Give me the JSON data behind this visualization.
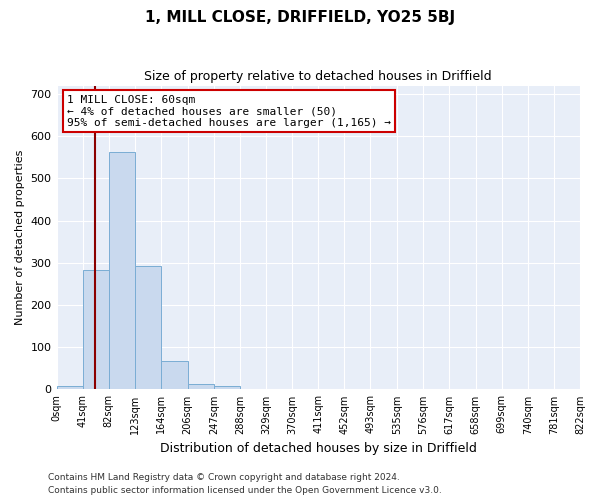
{
  "title": "1, MILL CLOSE, DRIFFIELD, YO25 5BJ",
  "subtitle": "Size of property relative to detached houses in Driffield",
  "xlabel": "Distribution of detached houses by size in Driffield",
  "ylabel": "Number of detached properties",
  "bar_edges": [
    0,
    41,
    82,
    123,
    164,
    206,
    247,
    288,
    329,
    370,
    411,
    452,
    493,
    535,
    576,
    617,
    658,
    699,
    740,
    781,
    822
  ],
  "bar_heights": [
    7,
    284,
    563,
    293,
    68,
    14,
    9,
    0,
    0,
    0,
    0,
    0,
    0,
    0,
    0,
    0,
    0,
    0,
    0,
    0
  ],
  "bar_color": "#c9d9ee",
  "bar_edge_color": "#7aadd4",
  "property_line_x": 60,
  "property_line_color": "#8b0000",
  "annotation_line1": "1 MILL CLOSE: 60sqm",
  "annotation_line2": "← 4% of detached houses are smaller (50)",
  "annotation_line3": "95% of semi-detached houses are larger (1,165) →",
  "annotation_box_color": "#ffffff",
  "annotation_box_edgecolor": "#cc0000",
  "ylim": [
    0,
    720
  ],
  "yticks": [
    0,
    100,
    200,
    300,
    400,
    500,
    600,
    700
  ],
  "footer_line1": "Contains HM Land Registry data © Crown copyright and database right 2024.",
  "footer_line2": "Contains public sector information licensed under the Open Government Licence v3.0.",
  "plot_bg_color": "#e8eef8",
  "tick_labels": [
    "0sqm",
    "41sqm",
    "82sqm",
    "123sqm",
    "164sqm",
    "206sqm",
    "247sqm",
    "288sqm",
    "329sqm",
    "370sqm",
    "411sqm",
    "452sqm",
    "493sqm",
    "535sqm",
    "576sqm",
    "617sqm",
    "658sqm",
    "699sqm",
    "740sqm",
    "781sqm",
    "822sqm"
  ]
}
